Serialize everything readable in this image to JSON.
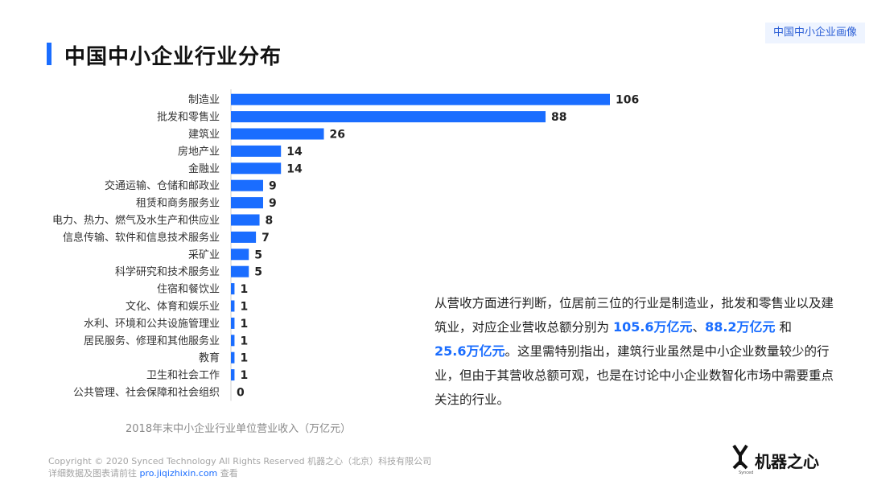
{
  "header": {
    "title": "中国中小企业行业分布",
    "tag": "中国中小企业画像"
  },
  "chart_data": {
    "type": "bar",
    "orientation": "horizontal",
    "categories": [
      "制造业",
      "批发和零售业",
      "建筑业",
      "房地产业",
      "金融业",
      "交通运输、仓储和邮政业",
      "租赁和商务服务业",
      "电力、热力、燃气及水生产和供应业",
      "信息传输、软件和信息技术服务业",
      "采矿业",
      "科学研究和技术服务业",
      "住宿和餐饮业",
      "文化、体育和娱乐业",
      "水利、环境和公共设施管理业",
      "居民服务、修理和其他服务业",
      "教育",
      "卫生和社会工作",
      "公共管理、社会保障和社会组织"
    ],
    "values": [
      106,
      88,
      26,
      14,
      14,
      9,
      9,
      8,
      7,
      5,
      5,
      1,
      1,
      1,
      1,
      1,
      1,
      0
    ],
    "xlabel": "2018年末中小企业行业单位营业收入（万亿元）",
    "xlim": [
      0,
      106
    ],
    "bar_color": "#1a6dff"
  },
  "description": {
    "part1": "从营收方面进行判断，位居前三位的行业是制造业，批发和零售业以及建筑业，对应企业营收总额分别为 ",
    "h1": "105.6万亿元",
    "sep1": "、",
    "h2": "88.2万亿元",
    "part2": " 和 ",
    "h3": "25.6万亿元",
    "part3": "。这里需特别指出，建筑行业虽然是中小企业数量较少的行业，但由于其营收总额可观，也是在讨论中小企业数智化市场中需要重点关注的行业。"
  },
  "footer": {
    "line1": "Copyright © 2020 Synced Technology All Rights Reserved  机器之心（北京）科技有限公司",
    "line2_prefix": "详细数据及图表请前往 ",
    "line2_link": "pro.jiqizhixin.com",
    "line2_suffix": " 查看"
  },
  "logo": {
    "text": "机器之心",
    "sub": "Synced"
  }
}
